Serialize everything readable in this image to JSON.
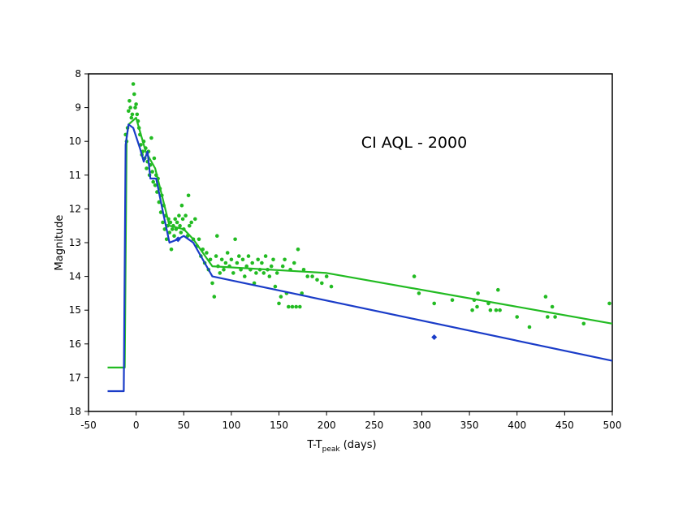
{
  "chart_data": {
    "type": "scatter",
    "title": "CI AQL - 2000",
    "xlabel": "T-T",
    "xlabel_subscript": "peak",
    "xlabel_suffix": " (days)",
    "ylabel": "Magnitude",
    "xlim": [
      -50,
      500
    ],
    "ylim": [
      8,
      18
    ],
    "y_inverted": true,
    "grid": false,
    "legend": "none",
    "x_ticks": [
      "-50",
      "0",
      "50",
      "100",
      "150",
      "200",
      "250",
      "300",
      "350",
      "400",
      "450",
      "500"
    ],
    "y_ticks": [
      "8",
      "9",
      "10",
      "11",
      "12",
      "13",
      "14",
      "15",
      "16",
      "17",
      "18"
    ],
    "series": [
      {
        "kind": "points",
        "color": "#22bb22",
        "points": [
          [
            -11,
            9.8
          ],
          [
            -10,
            10.0
          ],
          [
            -9,
            9.6
          ],
          [
            -8,
            9.1
          ],
          [
            -7,
            8.8
          ],
          [
            -6,
            9.0
          ],
          [
            -5,
            9.3
          ],
          [
            -4,
            9.2
          ],
          [
            -3,
            8.3
          ],
          [
            -2,
            8.6
          ],
          [
            -1,
            9.0
          ],
          [
            0,
            8.9
          ],
          [
            1,
            9.2
          ],
          [
            2,
            9.4
          ],
          [
            3,
            9.6
          ],
          [
            4,
            9.8
          ],
          [
            5,
            10.1
          ],
          [
            6,
            10.4
          ],
          [
            7,
            10.3
          ],
          [
            8,
            10.0
          ],
          [
            9,
            10.5
          ],
          [
            10,
            10.2
          ],
          [
            11,
            10.8
          ],
          [
            12,
            10.6
          ],
          [
            13,
            10.3
          ],
          [
            14,
            11.0
          ],
          [
            15,
            10.7
          ],
          [
            16,
            9.9
          ],
          [
            17,
            10.9
          ],
          [
            18,
            11.2
          ],
          [
            19,
            10.5
          ],
          [
            20,
            11.3
          ],
          [
            21,
            11.0
          ],
          [
            22,
            11.5
          ],
          [
            23,
            11.1
          ],
          [
            24,
            11.8
          ],
          [
            25,
            11.4
          ],
          [
            26,
            12.1
          ],
          [
            27,
            11.6
          ],
          [
            28,
            12.4
          ],
          [
            29,
            11.9
          ],
          [
            30,
            12.6
          ],
          [
            31,
            12.2
          ],
          [
            32,
            12.9
          ],
          [
            33,
            12.5
          ],
          [
            34,
            12.3
          ],
          [
            35,
            12.7
          ],
          [
            36,
            12.4
          ],
          [
            37,
            13.2
          ],
          [
            38,
            12.6
          ],
          [
            39,
            12.5
          ],
          [
            40,
            12.8
          ],
          [
            41,
            12.3
          ],
          [
            42,
            12.6
          ],
          [
            43,
            12.4
          ],
          [
            44,
            12.9
          ],
          [
            45,
            12.2
          ],
          [
            46,
            12.5
          ],
          [
            47,
            12.7
          ],
          [
            48,
            11.9
          ],
          [
            49,
            12.3
          ],
          [
            50,
            12.6
          ],
          [
            52,
            12.2
          ],
          [
            54,
            12.8
          ],
          [
            55,
            11.6
          ],
          [
            56,
            12.5
          ],
          [
            58,
            12.4
          ],
          [
            60,
            12.9
          ],
          [
            62,
            12.3
          ],
          [
            64,
            13.1
          ],
          [
            66,
            12.9
          ],
          [
            68,
            13.4
          ],
          [
            70,
            13.2
          ],
          [
            72,
            13.6
          ],
          [
            74,
            13.3
          ],
          [
            76,
            13.8
          ],
          [
            78,
            13.5
          ],
          [
            80,
            14.2
          ],
          [
            82,
            14.6
          ],
          [
            84,
            13.4
          ],
          [
            85,
            12.8
          ],
          [
            86,
            13.7
          ],
          [
            88,
            13.9
          ],
          [
            90,
            13.5
          ],
          [
            92,
            13.8
          ],
          [
            94,
            13.6
          ],
          [
            96,
            13.3
          ],
          [
            98,
            13.7
          ],
          [
            100,
            13.5
          ],
          [
            102,
            13.9
          ],
          [
            104,
            12.9
          ],
          [
            106,
            13.6
          ],
          [
            108,
            13.4
          ],
          [
            110,
            13.8
          ],
          [
            112,
            13.5
          ],
          [
            114,
            14.0
          ],
          [
            116,
            13.7
          ],
          [
            118,
            13.4
          ],
          [
            120,
            13.8
          ],
          [
            122,
            13.6
          ],
          [
            124,
            14.2
          ],
          [
            126,
            13.9
          ],
          [
            128,
            13.5
          ],
          [
            130,
            13.8
          ],
          [
            132,
            13.6
          ],
          [
            134,
            13.9
          ],
          [
            136,
            13.4
          ],
          [
            138,
            13.8
          ],
          [
            140,
            14.0
          ],
          [
            142,
            13.7
          ],
          [
            144,
            13.5
          ],
          [
            146,
            14.3
          ],
          [
            148,
            13.9
          ],
          [
            150,
            14.8
          ],
          [
            152,
            14.6
          ],
          [
            154,
            13.7
          ],
          [
            156,
            13.5
          ],
          [
            158,
            14.5
          ],
          [
            160,
            14.9
          ],
          [
            162,
            13.8
          ],
          [
            164,
            14.9
          ],
          [
            166,
            13.6
          ],
          [
            168,
            14.9
          ],
          [
            170,
            13.2
          ],
          [
            172,
            14.9
          ],
          [
            174,
            14.5
          ],
          [
            176,
            13.8
          ],
          [
            180,
            14.0
          ],
          [
            185,
            14.0
          ],
          [
            190,
            14.1
          ],
          [
            195,
            14.2
          ],
          [
            200,
            14.0
          ],
          [
            205,
            14.3
          ],
          [
            292,
            14.0
          ],
          [
            297,
            14.5
          ],
          [
            313,
            14.8
          ],
          [
            332,
            14.7
          ],
          [
            353,
            15.0
          ],
          [
            355,
            14.7
          ],
          [
            358,
            14.9
          ],
          [
            359,
            14.5
          ],
          [
            370,
            14.8
          ],
          [
            372,
            15.0
          ],
          [
            378,
            15.0
          ],
          [
            380,
            14.4
          ],
          [
            382,
            15.0
          ],
          [
            400,
            15.2
          ],
          [
            413,
            15.5
          ],
          [
            430,
            14.6
          ],
          [
            432,
            15.2
          ],
          [
            437,
            14.9
          ],
          [
            440,
            15.2
          ],
          [
            470,
            15.4
          ],
          [
            497,
            14.8
          ]
        ]
      },
      {
        "kind": "line",
        "color": "#22bb22",
        "points": [
          [
            -30,
            16.7
          ],
          [
            -12,
            16.7
          ],
          [
            -10,
            9.9
          ],
          [
            -8,
            9.5
          ],
          [
            0,
            9.3
          ],
          [
            10,
            10.3
          ],
          [
            20,
            10.8
          ],
          [
            35,
            12.5
          ],
          [
            50,
            12.6
          ],
          [
            60,
            12.9
          ],
          [
            80,
            13.7
          ],
          [
            200,
            13.9
          ],
          [
            500,
            15.4
          ]
        ]
      },
      {
        "kind": "line",
        "color": "#1a3cc8",
        "points": [
          [
            -30,
            17.4
          ],
          [
            -13,
            17.4
          ],
          [
            -11,
            10.1
          ],
          [
            -8,
            9.5
          ],
          [
            -3,
            9.6
          ],
          [
            4,
            10.2
          ],
          [
            8,
            10.6
          ],
          [
            12,
            10.3
          ],
          [
            15,
            11.1
          ],
          [
            21,
            11.1
          ],
          [
            29,
            12.2
          ],
          [
            35,
            13.0
          ],
          [
            44,
            12.9
          ],
          [
            50,
            12.8
          ],
          [
            60,
            13.0
          ],
          [
            80,
            14.0
          ],
          [
            500,
            16.5
          ]
        ]
      },
      {
        "kind": "points",
        "color": "#1a3cc8",
        "shape": "diamond",
        "points": [
          [
            44,
            12.9
          ],
          [
            313,
            15.8
          ]
        ]
      }
    ]
  }
}
